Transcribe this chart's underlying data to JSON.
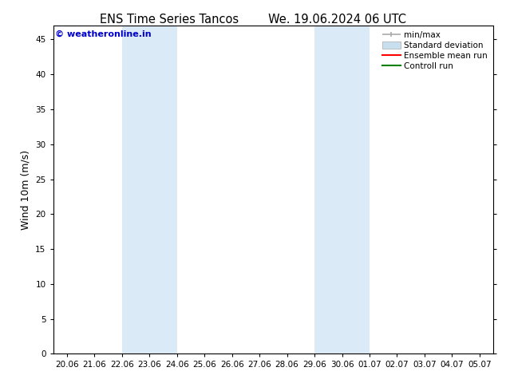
{
  "title_left": "ENS Time Series Tancos",
  "title_right": "We. 19.06.2024 06 UTC",
  "ylabel": "Wind 10m (m/s)",
  "watermark": "© weatheronline.in",
  "ylim": [
    0,
    47
  ],
  "yticks": [
    0,
    5,
    10,
    15,
    20,
    25,
    30,
    35,
    40,
    45
  ],
  "xtick_labels": [
    "20.06",
    "21.06",
    "22.06",
    "23.06",
    "24.06",
    "25.06",
    "26.06",
    "27.06",
    "28.06",
    "29.06",
    "30.06",
    "01.07",
    "02.07",
    "03.07",
    "04.07",
    "05.07"
  ],
  "shaded_ranges": [
    [
      2,
      4
    ],
    [
      9,
      11
    ]
  ],
  "band_color": "#daeaf7",
  "bg_color": "#ffffff",
  "tick_label_fontsize": 7.5,
  "axis_label_fontsize": 9,
  "title_fontsize": 10.5,
  "watermark_color": "#0000cc",
  "watermark_fontsize": 8,
  "minmax_color": "#aaaaaa",
  "std_color": "#c8dff0",
  "mean_color": "#ff0000",
  "ctrl_color": "#008000"
}
